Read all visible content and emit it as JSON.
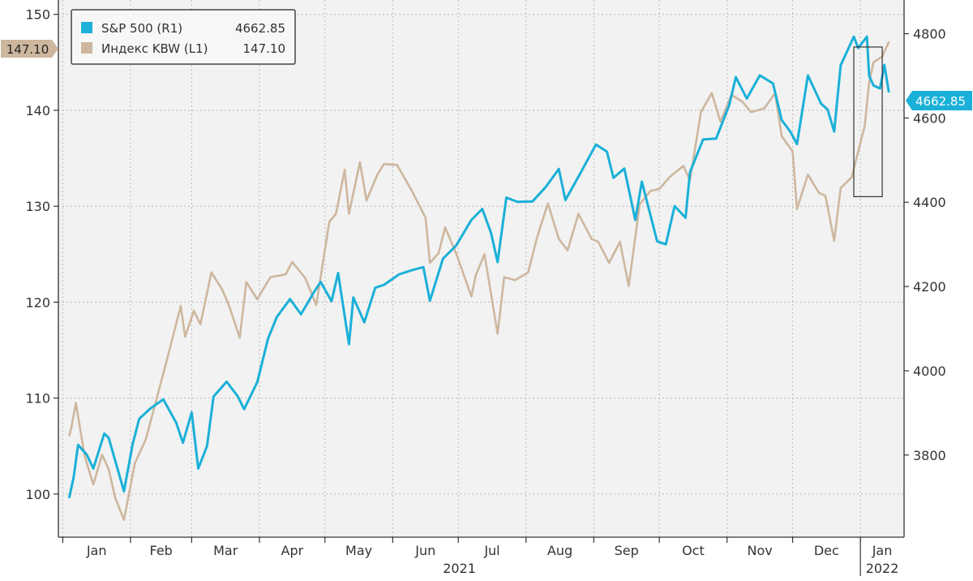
{
  "chart_data": {
    "type": "line",
    "legend": {
      "placement": "top-left",
      "entries": [
        {
          "label": "S&P 500 (R1)",
          "value": "4662.85",
          "color": "#1ab0d8"
        },
        {
          "label": "Индекс KBW (L1)",
          "value": "147.10",
          "color": "#cdb79e"
        }
      ]
    },
    "left_axis": {
      "ticks": [
        "100",
        "110",
        "120",
        "130",
        "140",
        "150"
      ],
      "range": [
        95.5,
        151.5
      ]
    },
    "right_axis": {
      "ticks": [
        "3800",
        "4000",
        "4200",
        "4400",
        "4600",
        "4800"
      ],
      "range": [
        3605,
        4880
      ]
    },
    "x_axis": {
      "months": [
        "Jan",
        "Feb",
        "Mar",
        "Apr",
        "May",
        "Jun",
        "Jul",
        "Aug",
        "Sep",
        "Oct",
        "Nov",
        "Dec",
        "Jan"
      ],
      "years": [
        "2021",
        "2022"
      ]
    },
    "last_value_labels": {
      "left": "147.10",
      "right": "4662.85"
    },
    "grid": true,
    "highlight_box": {
      "from": "2021-12-29",
      "to": "2022-01-11",
      "y_left": [
        131,
        146.6
      ]
    },
    "series": [
      {
        "name": "S&P 500 (R1)",
        "axis": "right",
        "color": "#1ab0d8",
        "points": [
          [
            "2021-01-04",
            3700
          ],
          [
            "2021-01-06",
            3748
          ],
          [
            "2021-01-08",
            3824
          ],
          [
            "2021-01-12",
            3801
          ],
          [
            "2021-01-15",
            3768
          ],
          [
            "2021-01-20",
            3851
          ],
          [
            "2021-01-22",
            3841
          ],
          [
            "2021-01-27",
            3750
          ],
          [
            "2021-01-29",
            3714
          ],
          [
            "2021-02-02",
            3826
          ],
          [
            "2021-02-05",
            3886
          ],
          [
            "2021-02-10",
            3910
          ],
          [
            "2021-02-16",
            3932
          ],
          [
            "2021-02-22",
            3876
          ],
          [
            "2021-02-25",
            3829
          ],
          [
            "2021-03-01",
            3901
          ],
          [
            "2021-03-04",
            3768
          ],
          [
            "2021-03-08",
            3821
          ],
          [
            "2021-03-11",
            3939
          ],
          [
            "2021-03-17",
            3974
          ],
          [
            "2021-03-22",
            3940
          ],
          [
            "2021-03-25",
            3909
          ],
          [
            "2021-03-31",
            3973
          ],
          [
            "2021-04-05",
            4077
          ],
          [
            "2021-04-09",
            4128
          ],
          [
            "2021-04-15",
            4170
          ],
          [
            "2021-04-20",
            4134
          ],
          [
            "2021-04-26",
            4187
          ],
          [
            "2021-04-29",
            4211
          ],
          [
            "2021-05-04",
            4165
          ],
          [
            "2021-05-07",
            4232
          ],
          [
            "2021-05-12",
            4063
          ],
          [
            "2021-05-14",
            4174
          ],
          [
            "2021-05-19",
            4115
          ],
          [
            "2021-05-24",
            4197
          ],
          [
            "2021-05-28",
            4204
          ],
          [
            "2021-06-04",
            4229
          ],
          [
            "2021-06-10",
            4239
          ],
          [
            "2021-06-15",
            4246
          ],
          [
            "2021-06-18",
            4166
          ],
          [
            "2021-06-24",
            4266
          ],
          [
            "2021-06-30",
            4297
          ],
          [
            "2021-07-07",
            4358
          ],
          [
            "2021-07-12",
            4384
          ],
          [
            "2021-07-16",
            4327
          ],
          [
            "2021-07-19",
            4258
          ],
          [
            "2021-07-23",
            4411
          ],
          [
            "2021-07-28",
            4401
          ],
          [
            "2021-08-04",
            4402
          ],
          [
            "2021-08-10",
            4436
          ],
          [
            "2021-08-16",
            4479
          ],
          [
            "2021-08-19",
            4405
          ],
          [
            "2021-08-26",
            4470
          ],
          [
            "2021-09-02",
            4537
          ],
          [
            "2021-09-07",
            4520
          ],
          [
            "2021-09-10",
            4458
          ],
          [
            "2021-09-15",
            4480
          ],
          [
            "2021-09-20",
            4358
          ],
          [
            "2021-09-23",
            4449
          ],
          [
            "2021-09-30",
            4307
          ],
          [
            "2021-10-04",
            4300
          ],
          [
            "2021-10-08",
            4391
          ],
          [
            "2021-10-13",
            4363
          ],
          [
            "2021-10-15",
            4471
          ],
          [
            "2021-10-21",
            4549
          ],
          [
            "2021-10-27",
            4551
          ],
          [
            "2021-11-02",
            4631
          ],
          [
            "2021-11-05",
            4697
          ],
          [
            "2021-11-10",
            4646
          ],
          [
            "2021-11-16",
            4701
          ],
          [
            "2021-11-22",
            4682
          ],
          [
            "2021-11-26",
            4595
          ],
          [
            "2021-11-30",
            4567
          ],
          [
            "2021-12-03",
            4538
          ],
          [
            "2021-12-08",
            4701
          ],
          [
            "2021-12-14",
            4634
          ],
          [
            "2021-12-17",
            4620
          ],
          [
            "2021-12-20",
            4568
          ],
          [
            "2021-12-23",
            4725
          ],
          [
            "2021-12-29",
            4793
          ],
          [
            "2021-12-31",
            4766
          ],
          [
            "2022-01-04",
            4793
          ],
          [
            "2022-01-05",
            4700
          ],
          [
            "2022-01-07",
            4677
          ],
          [
            "2022-01-10",
            4670
          ],
          [
            "2022-01-12",
            4726
          ],
          [
            "2022-01-14",
            4662.85
          ]
        ]
      },
      {
        "name": "Индекс KBW (L1)",
        "axis": "left",
        "color": "#cdb79e",
        "points": [
          [
            "2021-01-04",
            106.1
          ],
          [
            "2021-01-05",
            107.0
          ],
          [
            "2021-01-07",
            109.5
          ],
          [
            "2021-01-11",
            104.0
          ],
          [
            "2021-01-15",
            101.0
          ],
          [
            "2021-01-19",
            104.1
          ],
          [
            "2021-01-22",
            102.6
          ],
          [
            "2021-01-25",
            99.6
          ],
          [
            "2021-01-29",
            97.3
          ],
          [
            "2021-02-03",
            103.2
          ],
          [
            "2021-02-08",
            105.7
          ],
          [
            "2021-02-12",
            109.1
          ],
          [
            "2021-02-18",
            114.3
          ],
          [
            "2021-02-24",
            119.6
          ],
          [
            "2021-02-26",
            116.4
          ],
          [
            "2021-03-02",
            119.1
          ],
          [
            "2021-03-05",
            117.7
          ],
          [
            "2021-03-10",
            123.1
          ],
          [
            "2021-03-15",
            121.3
          ],
          [
            "2021-03-18",
            119.7
          ],
          [
            "2021-03-23",
            116.3
          ],
          [
            "2021-03-26",
            122.1
          ],
          [
            "2021-03-31",
            120.3
          ],
          [
            "2021-04-06",
            122.6
          ],
          [
            "2021-04-13",
            122.9
          ],
          [
            "2021-04-16",
            124.2
          ],
          [
            "2021-04-22",
            122.5
          ],
          [
            "2021-04-27",
            119.7
          ],
          [
            "2021-05-03",
            128.4
          ],
          [
            "2021-05-06",
            129.2
          ],
          [
            "2021-05-10",
            133.8
          ],
          [
            "2021-05-12",
            129.2
          ],
          [
            "2021-05-17",
            134.6
          ],
          [
            "2021-05-20",
            130.6
          ],
          [
            "2021-05-25",
            133.3
          ],
          [
            "2021-05-28",
            134.4
          ],
          [
            "2021-06-03",
            134.3
          ],
          [
            "2021-06-10",
            131.5
          ],
          [
            "2021-06-16",
            128.8
          ],
          [
            "2021-06-18",
            124.1
          ],
          [
            "2021-06-22",
            125.1
          ],
          [
            "2021-06-25",
            127.8
          ],
          [
            "2021-06-30",
            125.1
          ],
          [
            "2021-07-07",
            120.6
          ],
          [
            "2021-07-09",
            122.8
          ],
          [
            "2021-07-13",
            125.0
          ],
          [
            "2021-07-19",
            116.7
          ],
          [
            "2021-07-22",
            122.6
          ],
          [
            "2021-07-27",
            122.3
          ],
          [
            "2021-08-02",
            123.1
          ],
          [
            "2021-08-06",
            126.7
          ],
          [
            "2021-08-11",
            130.3
          ],
          [
            "2021-08-16",
            126.6
          ],
          [
            "2021-08-20",
            125.4
          ],
          [
            "2021-08-25",
            129.2
          ],
          [
            "2021-08-31",
            126.6
          ],
          [
            "2021-09-03",
            126.3
          ],
          [
            "2021-09-08",
            124.1
          ],
          [
            "2021-09-13",
            126.3
          ],
          [
            "2021-09-17",
            121.7
          ],
          [
            "2021-09-22",
            130.2
          ],
          [
            "2021-09-27",
            131.6
          ],
          [
            "2021-10-01",
            131.8
          ],
          [
            "2021-10-06",
            133.1
          ],
          [
            "2021-10-12",
            134.2
          ],
          [
            "2021-10-15",
            132.7
          ],
          [
            "2021-10-20",
            139.8
          ],
          [
            "2021-10-25",
            141.8
          ],
          [
            "2021-10-29",
            138.8
          ],
          [
            "2021-11-03",
            141.6
          ],
          [
            "2021-11-08",
            140.9
          ],
          [
            "2021-11-12",
            139.8
          ],
          [
            "2021-11-18",
            140.2
          ],
          [
            "2021-11-23",
            141.8
          ],
          [
            "2021-11-26",
            137.3
          ],
          [
            "2021-12-01",
            135.7
          ],
          [
            "2021-12-03",
            129.7
          ],
          [
            "2021-12-08",
            133.3
          ],
          [
            "2021-12-13",
            131.4
          ],
          [
            "2021-12-16",
            131.1
          ],
          [
            "2021-12-20",
            126.4
          ],
          [
            "2021-12-23",
            131.9
          ],
          [
            "2021-12-28",
            133.0
          ],
          [
            "2022-01-03",
            138.4
          ],
          [
            "2022-01-05",
            142.9
          ],
          [
            "2022-01-07",
            145.0
          ],
          [
            "2022-01-11",
            145.6
          ],
          [
            "2022-01-14",
            147.1
          ]
        ]
      }
    ]
  }
}
